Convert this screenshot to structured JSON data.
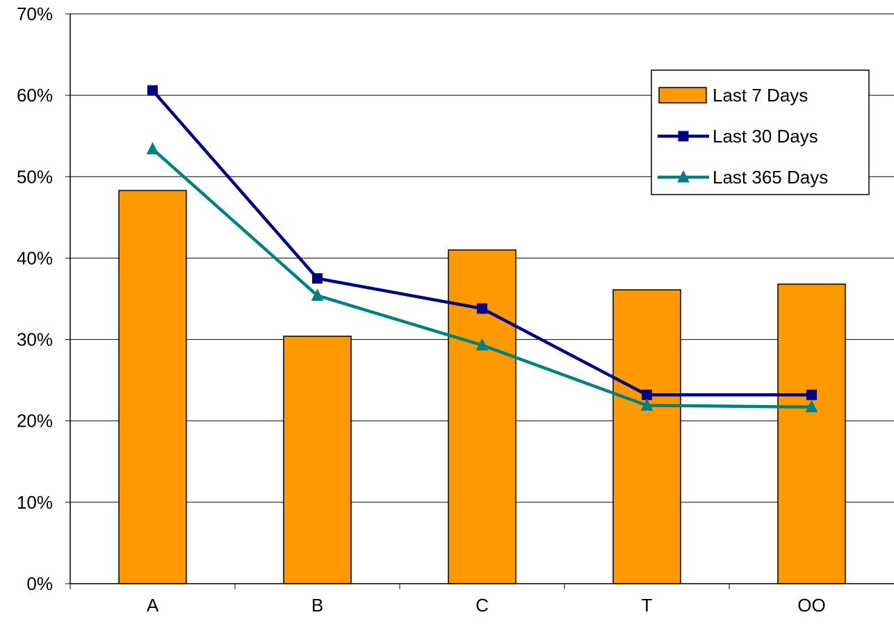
{
  "chart_data": {
    "type": "bar",
    "categories": [
      "A",
      "B",
      "C",
      "T",
      "OO"
    ],
    "series": [
      {
        "name": "Last 7 Days",
        "type": "bar",
        "values": [
          48.3,
          30.4,
          41.0,
          36.1,
          36.8
        ],
        "color": "#FF9900"
      },
      {
        "name": "Last 30 Days",
        "type": "line",
        "marker": "square",
        "values": [
          60.6,
          37.5,
          33.8,
          23.2,
          23.2
        ],
        "color": "#000080"
      },
      {
        "name": "Last 365 Days",
        "type": "line",
        "marker": "triangle",
        "values": [
          53.4,
          35.4,
          29.3,
          21.9,
          21.7
        ],
        "color": "#008080"
      }
    ],
    "ylim": [
      0,
      70
    ],
    "y_ticks": [
      "0%",
      "10%",
      "20%",
      "30%",
      "40%",
      "50%",
      "60%",
      "70%"
    ],
    "y_format": "percent",
    "grid": true,
    "legend_position": "top-right",
    "title": "",
    "xlabel": "",
    "ylabel": ""
  }
}
